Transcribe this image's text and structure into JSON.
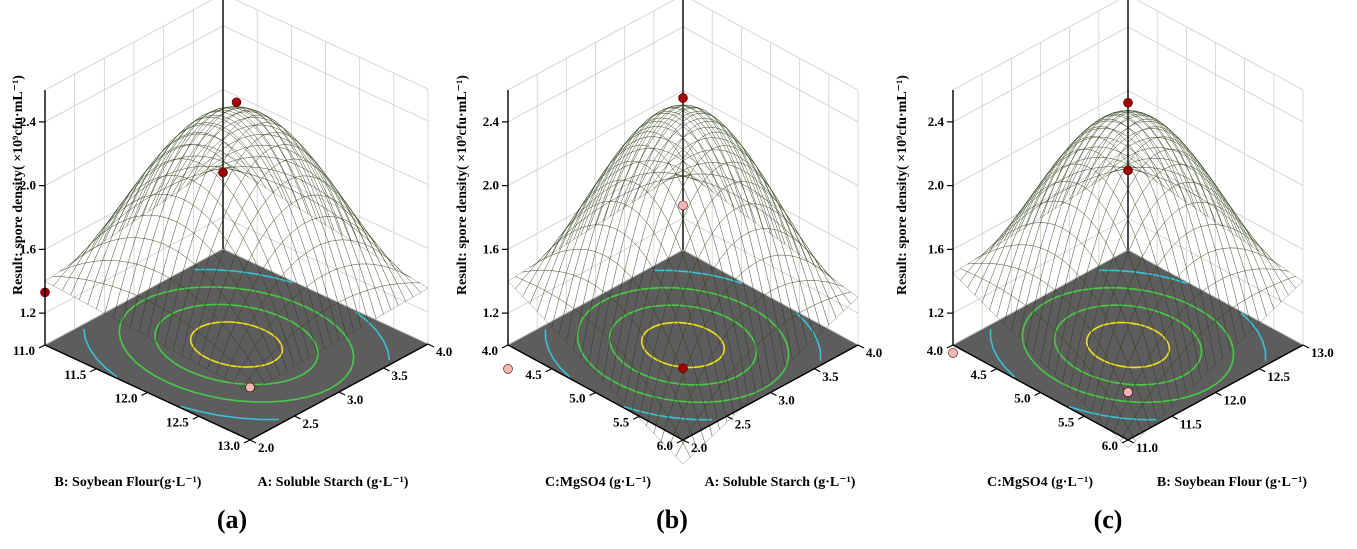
{
  "chart_data": [
    {
      "type": "surface3d",
      "panel_label": "(a)",
      "zlabel": "Result: spore density( ×10⁹cfu·mL⁻¹)",
      "xlabel": "B: Soybean Flour(g·L⁻¹)",
      "ylabel": "A: Soluble Starch (g·L⁻¹)",
      "x_ticks": [
        "11.0",
        "11.5",
        "12.0",
        "12.5",
        "13.0"
      ],
      "y_ticks": [
        "2.0",
        "2.5",
        "3.0",
        "3.5",
        "4.0"
      ],
      "z_ticks": [
        "1.2",
        "1.6",
        "2.0",
        "2.4"
      ],
      "xlim": [
        11.0,
        13.0
      ],
      "ylim": [
        2.0,
        4.0
      ],
      "zlim": [
        1.0,
        2.6
      ],
      "peak": {
        "x": 12.0,
        "y": 3.0,
        "z": 2.45
      },
      "corners": {
        "far": 1.55,
        "left": 1.4,
        "right": 1.35,
        "front": 1.3
      },
      "design_points": [
        {
          "x": 12.0,
          "y": 3.0,
          "z": 2.52,
          "color": "#a00000"
        },
        {
          "x": 11.0,
          "y": 4.0,
          "z": 1.48,
          "color": "#a00000"
        },
        {
          "x": 13.0,
          "y": 2.0,
          "z": 1.33,
          "color": "#f2b6b6"
        },
        {
          "x": 11.0,
          "y": 2.0,
          "z": 1.33,
          "color": "#a00000"
        }
      ]
    },
    {
      "type": "surface3d",
      "panel_label": "(b)",
      "zlabel": "Result: spore density( ×10⁹cfu·mL⁻¹)",
      "xlabel": "C:MgSO4 (g·L⁻¹)",
      "ylabel": "A: Soluble Starch (g·L⁻¹)",
      "x_ticks": [
        "4.0",
        "4.5",
        "5.0",
        "5.5",
        "6.0"
      ],
      "y_ticks": [
        "2.0",
        "2.5",
        "3.0",
        "3.5",
        "4.0"
      ],
      "z_ticks": [
        "1.2",
        "1.6",
        "2.0",
        "2.4"
      ],
      "xlim": [
        4.0,
        6.0
      ],
      "ylim": [
        2.0,
        4.0
      ],
      "zlim": [
        1.0,
        2.6
      ],
      "peak": {
        "x": 5.0,
        "y": 3.0,
        "z": 2.47
      },
      "corners": {
        "far": 1.5,
        "left": 1.4,
        "right": 1.3,
        "front": 0.85
      },
      "design_points": [
        {
          "x": 5.0,
          "y": 3.0,
          "z": 2.55,
          "color": "#a00000"
        },
        {
          "x": 6.0,
          "y": 2.0,
          "z": 1.45,
          "color": "#a00000"
        },
        {
          "x": 4.0,
          "y": 4.0,
          "z": 1.28,
          "color": "#f2b6b6"
        },
        {
          "x": 4.0,
          "y": 2.0,
          "z": 0.85,
          "color": "#f2b6b6"
        }
      ]
    },
    {
      "type": "surface3d",
      "panel_label": "(c)",
      "zlabel": "Result: spore density( ×10⁹cfu·mL⁻¹)",
      "xlabel": "C:MgSO4 (g·L⁻¹)",
      "ylabel": "B: Soybean Flour (g·L⁻¹)",
      "x_ticks": [
        "4.0",
        "4.5",
        "5.0",
        "5.5",
        "6.0"
      ],
      "y_ticks": [
        "11.0",
        "11.5",
        "12.0",
        "12.5",
        "13.0"
      ],
      "z_ticks": [
        "1.2",
        "1.6",
        "2.0",
        "2.4"
      ],
      "xlim": [
        4.0,
        6.0
      ],
      "ylim": [
        11.0,
        13.0
      ],
      "zlim": [
        1.0,
        2.6
      ],
      "peak": {
        "x": 5.0,
        "y": 12.0,
        "z": 2.43
      },
      "corners": {
        "far": 1.55,
        "left": 1.45,
        "right": 1.4,
        "front": 0.95
      },
      "design_points": [
        {
          "x": 5.0,
          "y": 12.0,
          "z": 2.52,
          "color": "#a00000"
        },
        {
          "x": 4.0,
          "y": 13.0,
          "z": 1.5,
          "color": "#a00000"
        },
        {
          "x": 6.0,
          "y": 11.0,
          "z": 1.3,
          "color": "#f2b6b6"
        },
        {
          "x": 4.0,
          "y": 11.0,
          "z": 0.95,
          "color": "#f2b6b6"
        }
      ]
    }
  ]
}
